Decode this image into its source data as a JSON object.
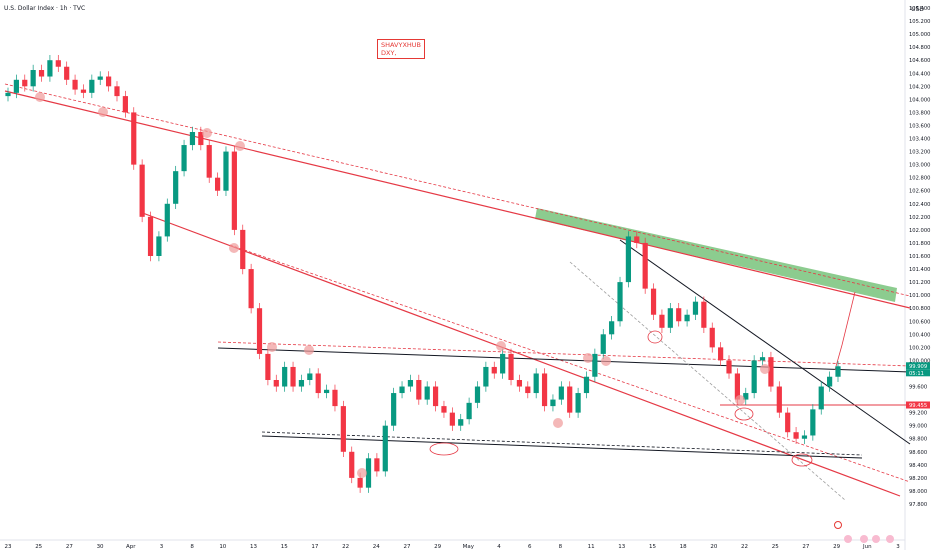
{
  "header": {
    "title": "U.S. Dollar Index · 1h · TVC",
    "currency": "USD",
    "watermark_line1": "SHAVYXHUB",
    "watermark_line2": "DXY,"
  },
  "colors": {
    "up": "#089981",
    "down": "#f23645",
    "trend": "#e53945",
    "zone": "#66bb6a",
    "line": "#131722",
    "highlight": "#ef9a9a"
  },
  "price_tags": {
    "last": "99.909",
    "countdown": "05:11",
    "level": "99.455"
  },
  "chart_data": {
    "type": "line",
    "title": "U.S. Dollar Index",
    "ylim": [
      97.8,
      105.4
    ],
    "y_ticks": [
      "105.400",
      "105.200",
      "105.000",
      "104.800",
      "104.600",
      "104.400",
      "104.200",
      "104.000",
      "103.800",
      "103.600",
      "103.400",
      "103.200",
      "103.000",
      "102.800",
      "102.600",
      "102.400",
      "102.200",
      "102.000",
      "101.800",
      "101.600",
      "101.400",
      "101.200",
      "101.000",
      "100.800",
      "100.600",
      "100.400",
      "100.200",
      "100.000",
      "99.800",
      "99.600",
      "99.200",
      "99.000",
      "98.800",
      "98.600",
      "98.400",
      "98.200",
      "98.000",
      "97.800"
    ],
    "x_ticks": [
      "23",
      "25",
      "27",
      "30",
      "Apr",
      "3",
      "8",
      "10",
      "13",
      "15",
      "17",
      "22",
      "24",
      "27",
      "29",
      "May",
      "4",
      "6",
      "8",
      "11",
      "13",
      "15",
      "18",
      "20",
      "22",
      "25",
      "27",
      "29",
      "Jun",
      "3"
    ],
    "series": [
      {
        "values": [
          104.1,
          104.3,
          104.2,
          104.45,
          104.35,
          104.6,
          104.5,
          104.3,
          104.15,
          104.1,
          104.3,
          104.35,
          104.2,
          104.05,
          103.8,
          103.0,
          102.2,
          101.6,
          101.9,
          102.4,
          102.9,
          103.3,
          103.5,
          103.3,
          102.8,
          102.6,
          103.2,
          102.0,
          101.4,
          100.8,
          100.1,
          99.7,
          99.6,
          99.9,
          99.6,
          99.7,
          99.8,
          99.5,
          99.55,
          99.3,
          98.6,
          98.2,
          98.05,
          98.5,
          98.3,
          99.0,
          99.5,
          99.6,
          99.7,
          99.4,
          99.6,
          99.3,
          99.2,
          99.0,
          99.1,
          99.35,
          99.6,
          99.9,
          99.8,
          100.1,
          99.7,
          99.6,
          99.5,
          99.8,
          99.3,
          99.4,
          99.6,
          99.2,
          99.5,
          99.75,
          100.1,
          100.4,
          100.6,
          101.2,
          101.9,
          101.8,
          101.1,
          100.7,
          100.5,
          100.8,
          100.6,
          100.7,
          100.9,
          100.5,
          100.2,
          100.0,
          99.8,
          99.4,
          99.5,
          100.0,
          100.05,
          99.6,
          99.2,
          98.9,
          98.8,
          98.85,
          99.25,
          99.6,
          99.75,
          99.91
        ]
      }
    ]
  }
}
